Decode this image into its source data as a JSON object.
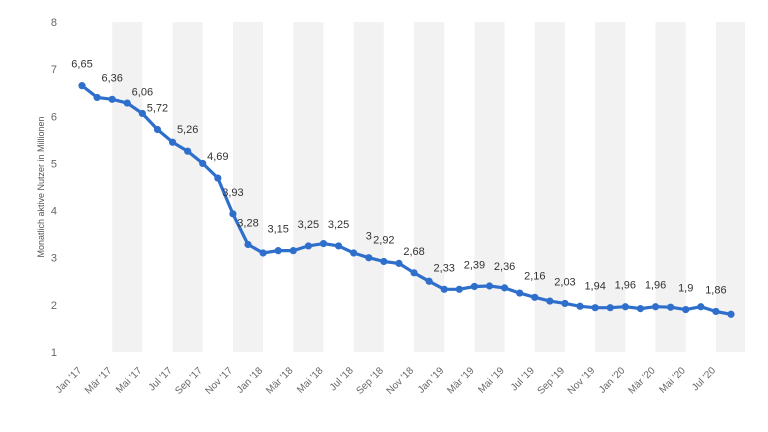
{
  "chart_data": {
    "type": "line",
    "title": "",
    "xlabel": "",
    "ylabel": "Monatlich aktive Nutzer in Millionen",
    "ylim": [
      1,
      8
    ],
    "yticks": [
      "1",
      "2",
      "3",
      "4",
      "5",
      "6",
      "7",
      "8"
    ],
    "grid": "vertical alternating bands",
    "legend": "none",
    "colors": {
      "line": "#2f6fcc",
      "band": "#f2f2f2",
      "text": "#333333",
      "tick": "#666666"
    },
    "x_tick_labels": [
      "Jan '17",
      "Mär '17",
      "Mai '17",
      "Jul '17",
      "Sep '17",
      "Nov '17",
      "Jan '18",
      "Mär '18",
      "Mai '18",
      "Jul '18",
      "Sep '18",
      "Nov '18",
      "Jan '19",
      "Mär '19",
      "Mai '19",
      "Jul '19",
      "Sep '19",
      "Nov '19",
      "Jan '20",
      "Mär '20",
      "Mai '20",
      "Jul '20"
    ],
    "x": [
      "Jan '17",
      "Feb '17",
      "Mär '17",
      "Apr '17",
      "Mai '17",
      "Jun '17",
      "Jul '17",
      "Aug '17",
      "Sep '17",
      "Okt '17",
      "Nov '17",
      "Dez '17",
      "Jan '18",
      "Feb '18",
      "Mär '18",
      "Apr '18",
      "Mai '18",
      "Jun '18",
      "Jul '18",
      "Aug '18",
      "Sep '18",
      "Okt '18",
      "Nov '18",
      "Dez '18",
      "Jan '19",
      "Feb '19",
      "Mär '19",
      "Apr '19",
      "Mai '19",
      "Jun '19",
      "Jul '19",
      "Aug '19",
      "Sep '19",
      "Okt '19",
      "Nov '19",
      "Dez '19",
      "Jan '20",
      "Feb '20",
      "Mär '20",
      "Apr '20",
      "Mai '20",
      "Jun '20",
      "Jul '20",
      "Aug '20"
    ],
    "values": [
      6.65,
      6.4,
      6.36,
      6.28,
      6.06,
      5.72,
      5.45,
      5.26,
      5.0,
      4.69,
      3.93,
      3.28,
      3.1,
      3.15,
      3.15,
      3.25,
      3.3,
      3.25,
      3.1,
      3.0,
      2.92,
      2.88,
      2.68,
      2.5,
      2.33,
      2.33,
      2.39,
      2.4,
      2.36,
      2.25,
      2.16,
      2.08,
      2.03,
      1.97,
      1.94,
      1.94,
      1.96,
      1.92,
      1.96,
      1.95,
      1.9,
      1.96,
      1.86,
      1.8
    ],
    "labels": [
      "6,65",
      "",
      "6,36",
      "",
      "6,06",
      "5,72",
      "",
      "5,26",
      "",
      "4,69",
      "3,93",
      "3,28",
      "",
      "3,15",
      "",
      "3,25",
      "",
      "3,25",
      "",
      "3",
      "2,92",
      "",
      "2,68",
      "",
      "2,33",
      "",
      "2,39",
      "",
      "2,36",
      "",
      "2,16",
      "",
      "2,03",
      "",
      "1,94",
      "",
      "1,96",
      "",
      "1,96",
      "",
      "1,9",
      "",
      "1,86",
      ""
    ]
  }
}
